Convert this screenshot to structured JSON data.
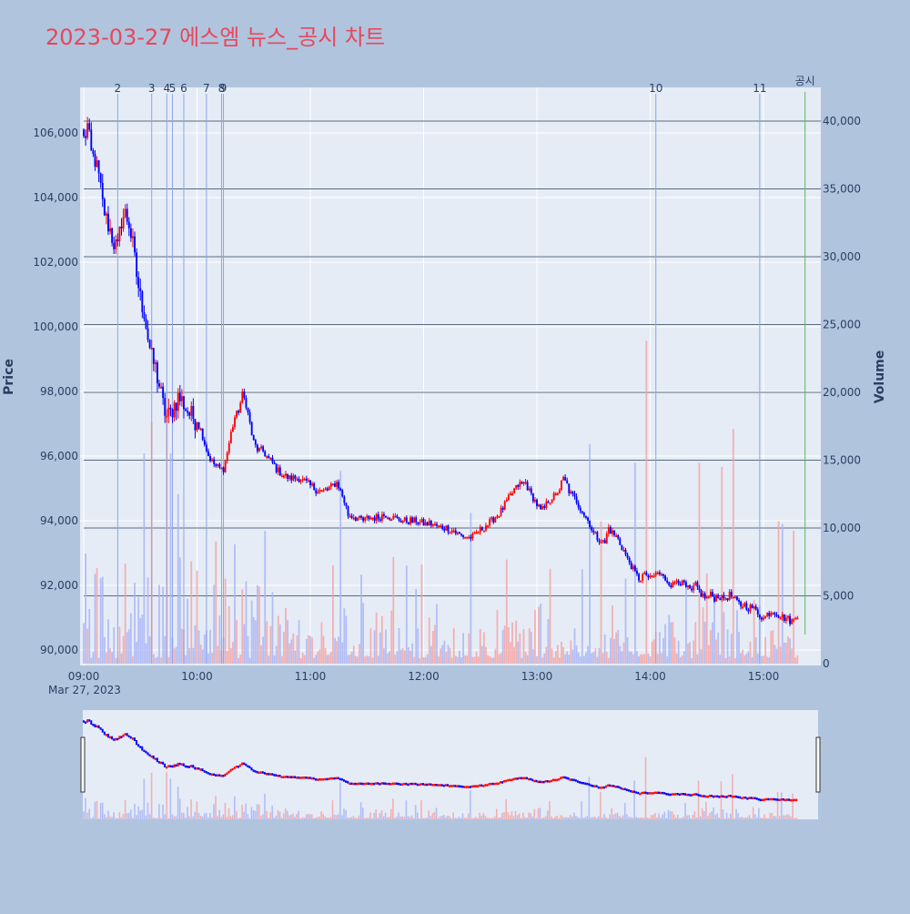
{
  "colors": {
    "page_bg": "#b0c4de",
    "plot_bg": "#e5ecf6",
    "title": "#e8475a",
    "up": "#ff0000",
    "down": "#0000ff",
    "volume_up": "#f4a6a6",
    "volume_down": "#a9b6f5",
    "news_line": "#8fa4e6",
    "disclosure_line": "#5cb85c",
    "volume_grid": "#5a6b80",
    "axis_text": "#2a3f5f"
  },
  "chart_data": {
    "type": "candlestick",
    "title": "2023-03-27 에스엠 뉴스_공시 차트",
    "ylabel": "Price",
    "y2label": "Volume",
    "x_ticks": [
      {
        "t": "09:00",
        "label": "09:00"
      },
      {
        "t": "10:00",
        "label": "10:00"
      },
      {
        "t": "11:00",
        "label": "11:00"
      },
      {
        "t": "12:00",
        "label": "12:00"
      },
      {
        "t": "13:00",
        "label": "13:00"
      },
      {
        "t": "14:00",
        "label": "14:00"
      },
      {
        "t": "15:00",
        "label": "15:00"
      }
    ],
    "x_sublabel": "Mar 27, 2023",
    "x_range": [
      "09:00",
      "15:31"
    ],
    "ylim": [
      89500,
      107000
    ],
    "y_ticks": [
      90000,
      92000,
      94000,
      96000,
      98000,
      100000,
      102000,
      104000,
      106000
    ],
    "y_tick_labels": [
      "90,000",
      "92,000",
      "94,000",
      "96,000",
      "98,000",
      "100,000",
      "102,000",
      "104,000",
      "106,000"
    ],
    "y2lim": [
      0,
      40000
    ],
    "y2_ticks": [
      0,
      5000,
      10000,
      15000,
      20000,
      25000,
      30000,
      35000,
      40000
    ],
    "y2_tick_labels": [
      "0",
      "5,000",
      "10,000",
      "15,000",
      "20,000",
      "25,000",
      "30,000",
      "35,000",
      "40,000"
    ],
    "price_path": [
      [
        "09:00",
        105800
      ],
      [
        "09:02",
        106200
      ],
      [
        "09:04",
        105300
      ],
      [
        "09:06",
        105200
      ],
      [
        "09:08",
        104600
      ],
      [
        "09:10",
        103800
      ],
      [
        "09:12",
        103300
      ],
      [
        "09:14",
        103000
      ],
      [
        "09:16",
        102600
      ],
      [
        "09:18",
        102400
      ],
      [
        "09:20",
        103300
      ],
      [
        "09:22",
        103500
      ],
      [
        "09:24",
        103200
      ],
      [
        "09:26",
        102500
      ],
      [
        "09:28",
        101600
      ],
      [
        "09:30",
        100900
      ],
      [
        "09:32",
        100500
      ],
      [
        "09:34",
        99700
      ],
      [
        "09:36",
        99000
      ],
      [
        "09:38",
        98700
      ],
      [
        "09:40",
        98200
      ],
      [
        "09:42",
        97600
      ],
      [
        "09:44",
        97200
      ],
      [
        "09:46",
        97300
      ],
      [
        "09:48",
        97600
      ],
      [
        "09:50",
        97800
      ],
      [
        "09:52",
        97700
      ],
      [
        "09:54",
        97500
      ],
      [
        "09:56",
        97300
      ],
      [
        "09:58",
        97200
      ],
      [
        "10:00",
        97100
      ],
      [
        "10:02",
        96800
      ],
      [
        "10:04",
        96400
      ],
      [
        "10:06",
        96000
      ],
      [
        "10:08",
        95800
      ],
      [
        "10:10",
        95700
      ],
      [
        "10:12",
        95600
      ],
      [
        "10:14",
        95600
      ],
      [
        "10:16",
        96100
      ],
      [
        "10:18",
        96700
      ],
      [
        "10:20",
        97200
      ],
      [
        "10:22",
        97400
      ],
      [
        "10:24",
        97900
      ],
      [
        "10:26",
        97600
      ],
      [
        "10:28",
        97000
      ],
      [
        "10:30",
        96400
      ],
      [
        "10:32",
        96200
      ],
      [
        "10:34",
        96200
      ],
      [
        "10:36",
        96100
      ],
      [
        "10:38",
        95900
      ],
      [
        "10:40",
        95800
      ],
      [
        "10:42",
        95600
      ],
      [
        "10:46",
        95400
      ],
      [
        "10:50",
        95300
      ],
      [
        "10:54",
        95300
      ],
      [
        "10:58",
        95200
      ],
      [
        "11:02",
        95000
      ],
      [
        "11:06",
        94900
      ],
      [
        "11:10",
        95000
      ],
      [
        "11:14",
        95200
      ],
      [
        "11:16",
        94900
      ],
      [
        "11:18",
        94600
      ],
      [
        "11:20",
        94200
      ],
      [
        "11:24",
        94100
      ],
      [
        "11:28",
        94000
      ],
      [
        "11:32",
        94100
      ],
      [
        "11:36",
        94100
      ],
      [
        "11:40",
        94200
      ],
      [
        "11:44",
        94100
      ],
      [
        "11:48",
        94000
      ],
      [
        "11:52",
        94000
      ],
      [
        "11:56",
        94000
      ],
      [
        "12:00",
        93900
      ],
      [
        "12:04",
        93900
      ],
      [
        "12:08",
        93800
      ],
      [
        "12:12",
        93800
      ],
      [
        "12:16",
        93700
      ],
      [
        "12:18",
        93600
      ],
      [
        "12:22",
        93500
      ],
      [
        "12:26",
        93500
      ],
      [
        "12:30",
        93700
      ],
      [
        "12:34",
        93900
      ],
      [
        "12:38",
        94100
      ],
      [
        "12:42",
        94400
      ],
      [
        "12:46",
        94800
      ],
      [
        "12:50",
        95100
      ],
      [
        "12:54",
        95200
      ],
      [
        "12:56",
        94900
      ],
      [
        "12:58",
        94700
      ],
      [
        "13:00",
        94500
      ],
      [
        "13:02",
        94300
      ],
      [
        "13:04",
        94400
      ],
      [
        "13:06",
        94600
      ],
      [
        "13:08",
        94700
      ],
      [
        "13:10",
        94800
      ],
      [
        "13:12",
        95000
      ],
      [
        "13:14",
        95300
      ],
      [
        "13:16",
        95100
      ],
      [
        "13:18",
        94800
      ],
      [
        "13:20",
        94700
      ],
      [
        "13:22",
        94500
      ],
      [
        "13:24",
        94300
      ],
      [
        "13:26",
        94100
      ],
      [
        "13:28",
        93900
      ],
      [
        "13:30",
        93600
      ],
      [
        "13:32",
        93500
      ],
      [
        "13:34",
        93400
      ],
      [
        "13:36",
        93300
      ],
      [
        "13:38",
        93800
      ],
      [
        "13:40",
        93600
      ],
      [
        "13:42",
        93500
      ],
      [
        "13:44",
        93300
      ],
      [
        "13:46",
        93100
      ],
      [
        "13:48",
        92800
      ],
      [
        "13:50",
        92600
      ],
      [
        "13:52",
        92400
      ],
      [
        "13:54",
        92200
      ],
      [
        "13:56",
        92300
      ],
      [
        "13:58",
        92300
      ],
      [
        "14:00",
        92200
      ],
      [
        "14:02",
        92300
      ],
      [
        "14:04",
        92400
      ],
      [
        "14:06",
        92300
      ],
      [
        "14:08",
        92200
      ],
      [
        "14:10",
        92100
      ],
      [
        "14:12",
        92000
      ],
      [
        "14:14",
        92200
      ],
      [
        "14:16",
        92100
      ],
      [
        "14:18",
        92000
      ],
      [
        "14:20",
        91900
      ],
      [
        "14:22",
        91800
      ],
      [
        "14:24",
        92000
      ],
      [
        "14:26",
        91800
      ],
      [
        "14:28",
        91700
      ],
      [
        "14:30",
        91600
      ],
      [
        "14:32",
        91700
      ],
      [
        "14:34",
        91600
      ],
      [
        "14:36",
        91700
      ],
      [
        "14:38",
        91600
      ],
      [
        "14:40",
        91600
      ],
      [
        "14:42",
        91700
      ],
      [
        "14:44",
        91600
      ],
      [
        "14:46",
        91500
      ],
      [
        "14:48",
        91400
      ],
      [
        "14:50",
        91400
      ],
      [
        "14:52",
        91300
      ],
      [
        "14:54",
        91300
      ],
      [
        "14:56",
        91200
      ],
      [
        "14:58",
        91100
      ],
      [
        "15:00",
        91000
      ],
      [
        "15:02",
        91100
      ],
      [
        "15:04",
        91200
      ],
      [
        "15:06",
        91200
      ],
      [
        "15:08",
        91100
      ],
      [
        "15:10",
        91000
      ],
      [
        "15:12",
        91000
      ],
      [
        "15:14",
        90900
      ],
      [
        "15:16",
        90900
      ],
      [
        "15:18",
        91100
      ]
    ],
    "volume_spikes": [
      {
        "t": "09:32",
        "v": 15500,
        "dir": "down"
      },
      {
        "t": "09:36",
        "v": 17800,
        "dir": "up"
      },
      {
        "t": "09:44",
        "v": 18000,
        "dir": "up"
      },
      {
        "t": "09:46",
        "v": 15500,
        "dir": "down"
      },
      {
        "t": "09:50",
        "v": 12500,
        "dir": "down"
      },
      {
        "t": "10:10",
        "v": 9000,
        "dir": "up"
      },
      {
        "t": "10:20",
        "v": 8800,
        "dir": "down"
      },
      {
        "t": "11:16",
        "v": 14200,
        "dir": "down"
      },
      {
        "t": "13:28",
        "v": 16200,
        "dir": "down"
      },
      {
        "t": "13:34",
        "v": 10500,
        "dir": "up"
      },
      {
        "t": "13:52",
        "v": 14800,
        "dir": "down"
      },
      {
        "t": "13:58",
        "v": 23800,
        "dir": "up"
      },
      {
        "t": "14:26",
        "v": 14800,
        "dir": "up"
      },
      {
        "t": "14:38",
        "v": 14500,
        "dir": "up"
      },
      {
        "t": "14:44",
        "v": 17300,
        "dir": "up"
      },
      {
        "t": "15:08",
        "v": 10500,
        "dir": "up"
      },
      {
        "t": "15:10",
        "v": 10300,
        "dir": "down"
      },
      {
        "t": "15:16",
        "v": 9800,
        "dir": "up"
      }
    ],
    "news_markers": [
      {
        "label": "2",
        "t": "09:18"
      },
      {
        "label": "3",
        "t": "09:36"
      },
      {
        "label": "4",
        "t": "09:44"
      },
      {
        "label": "5",
        "t": "09:47"
      },
      {
        "label": "6",
        "t": "09:53"
      },
      {
        "label": "7",
        "t": "10:05"
      },
      {
        "label": "8",
        "t": "10:13"
      },
      {
        "label": "9",
        "t": "10:14"
      },
      {
        "label": "10",
        "t": "14:03"
      },
      {
        "label": "11",
        "t": "14:58"
      }
    ],
    "disclosure_markers": [
      {
        "label": "공시",
        "t": "15:22"
      }
    ],
    "legend": "none",
    "grid": true
  }
}
